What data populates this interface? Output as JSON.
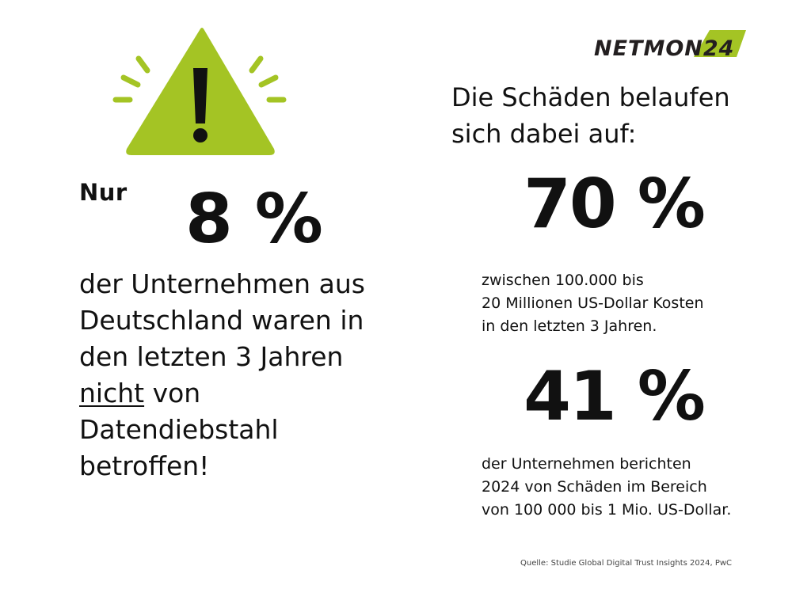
{
  "logo": {
    "text": "NETMON24",
    "icon": "netmon24-logo",
    "color_dark": "#231f20",
    "color_accent": "#a4c424"
  },
  "warning": {
    "icon": "exclamation-triangle-icon",
    "color": "#a4c424",
    "mark_color": "#111111"
  },
  "left": {
    "prefix": "Nur",
    "big_value": "8 %",
    "text_lines": [
      "der Unternehmen aus",
      "Deutschland waren in",
      "den letzten 3 Jahren"
    ],
    "underlined_word": "nicht",
    "after_underlined": " von",
    "tail_lines": [
      "Datendiebstahl",
      "betroffen!"
    ]
  },
  "right": {
    "heading_lines": [
      "Die Schäden belaufen",
      "sich dabei auf:"
    ],
    "stat1": {
      "value": "70 %",
      "lines": [
        "zwischen 100.000 bis",
        "20 Millionen US-Dollar Kosten",
        "in den letzten 3 Jahren."
      ]
    },
    "stat2": {
      "value": "41 %",
      "lines": [
        "der Unternehmen berichten",
        "2024 von Schäden im Bereich",
        "von 100 000 bis 1 Mio. US-Dollar."
      ]
    }
  },
  "source": "Quelle: Studie Global Digital Trust Insights 2024, PwC"
}
